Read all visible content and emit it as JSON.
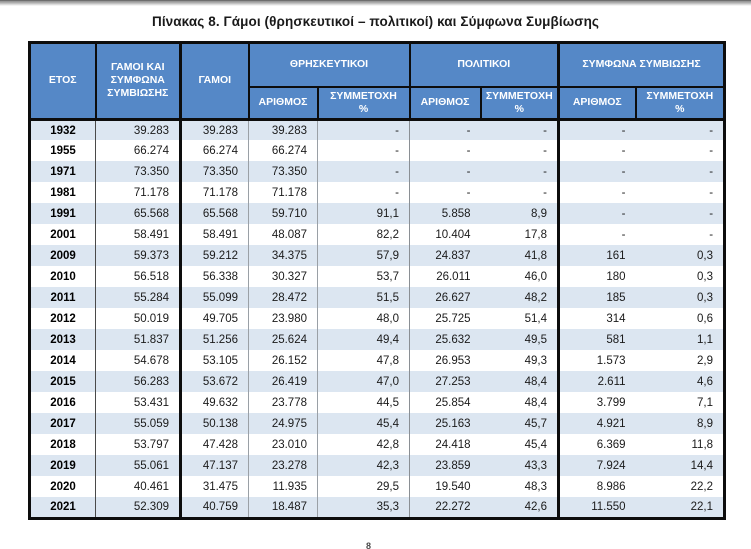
{
  "page": {
    "title": "Πίνακας 8. Γάμοι (θρησκευτικοί – πολιτικοί) και Σύμφωνα Συμβίωσης",
    "page_number": "8"
  },
  "colors": {
    "header_blue": "#5588C7",
    "row_band_blue": "#DCE6F1",
    "border_black": "#0d0d0d",
    "header_text": "#ffffff"
  },
  "table": {
    "header": {
      "year": "ΕΤΟΣ",
      "total": "ΓΑΜΟΙ ΚΑΙ ΣΥΜΦΩΝΑ ΣΥΜΒΙΩΣΗΣ",
      "marriages": "ΓΑΜΟΙ",
      "group_religious": "ΘΡΗΣΚΕΥΤΙΚΟΙ",
      "group_civil": "ΠΟΛΙΤΙΚΟΙ",
      "group_cohabitation": "ΣΥΜΦΩΝΑ ΣΥΜΒΙΩΣΗΣ",
      "number": "ΑΡΙΘΜΟΣ",
      "share": "ΣΥΜΜΕΤΟΧΗ\n%"
    },
    "rows": [
      {
        "year": "1932",
        "total": "39.283",
        "marriages": "39.283",
        "rel_n": "39.283",
        "rel_p": "-",
        "civ_n": "-",
        "civ_p": "-",
        "coh_n": "-",
        "coh_p": "-"
      },
      {
        "year": "1955",
        "total": "66.274",
        "marriages": "66.274",
        "rel_n": "66.274",
        "rel_p": "-",
        "civ_n": "-",
        "civ_p": "-",
        "coh_n": "-",
        "coh_p": "-"
      },
      {
        "year": "1971",
        "total": "73.350",
        "marriages": "73.350",
        "rel_n": "73.350",
        "rel_p": "-",
        "civ_n": "-",
        "civ_p": "-",
        "coh_n": "-",
        "coh_p": "-"
      },
      {
        "year": "1981",
        "total": "71.178",
        "marriages": "71.178",
        "rel_n": "71.178",
        "rel_p": "-",
        "civ_n": "-",
        "civ_p": "-",
        "coh_n": "-",
        "coh_p": "-"
      },
      {
        "year": "1991",
        "total": "65.568",
        "marriages": "65.568",
        "rel_n": "59.710",
        "rel_p": "91,1",
        "civ_n": "5.858",
        "civ_p": "8,9",
        "coh_n": "-",
        "coh_p": "-"
      },
      {
        "year": "2001",
        "total": "58.491",
        "marriages": "58.491",
        "rel_n": "48.087",
        "rel_p": "82,2",
        "civ_n": "10.404",
        "civ_p": "17,8",
        "coh_n": "-",
        "coh_p": "-"
      },
      {
        "year": "2009",
        "total": "59.373",
        "marriages": "59.212",
        "rel_n": "34.375",
        "rel_p": "57,9",
        "civ_n": "24.837",
        "civ_p": "41,8",
        "coh_n": "161",
        "coh_p": "0,3"
      },
      {
        "year": "2010",
        "total": "56.518",
        "marriages": "56.338",
        "rel_n": "30.327",
        "rel_p": "53,7",
        "civ_n": "26.011",
        "civ_p": "46,0",
        "coh_n": "180",
        "coh_p": "0,3"
      },
      {
        "year": "2011",
        "total": "55.284",
        "marriages": "55.099",
        "rel_n": "28.472",
        "rel_p": "51,5",
        "civ_n": "26.627",
        "civ_p": "48,2",
        "coh_n": "185",
        "coh_p": "0,3"
      },
      {
        "year": "2012",
        "total": "50.019",
        "marriages": "49.705",
        "rel_n": "23.980",
        "rel_p": "48,0",
        "civ_n": "25.725",
        "civ_p": "51,4",
        "coh_n": "314",
        "coh_p": "0,6"
      },
      {
        "year": "2013",
        "total": "51.837",
        "marriages": "51.256",
        "rel_n": "25.624",
        "rel_p": "49,4",
        "civ_n": "25.632",
        "civ_p": "49,5",
        "coh_n": "581",
        "coh_p": "1,1"
      },
      {
        "year": "2014",
        "total": "54.678",
        "marriages": "53.105",
        "rel_n": "26.152",
        "rel_p": "47,8",
        "civ_n": "26.953",
        "civ_p": "49,3",
        "coh_n": "1.573",
        "coh_p": "2,9"
      },
      {
        "year": "2015",
        "total": "56.283",
        "marriages": "53.672",
        "rel_n": "26.419",
        "rel_p": "47,0",
        "civ_n": "27.253",
        "civ_p": "48,4",
        "coh_n": "2.611",
        "coh_p": "4,6"
      },
      {
        "year": "2016",
        "total": "53.431",
        "marriages": "49.632",
        "rel_n": "23.778",
        "rel_p": "44,5",
        "civ_n": "25.854",
        "civ_p": "48,4",
        "coh_n": "3.799",
        "coh_p": "7,1"
      },
      {
        "year": "2017",
        "total": "55.059",
        "marriages": "50.138",
        "rel_n": "24.975",
        "rel_p": "45,4",
        "civ_n": "25.163",
        "civ_p": "45,7",
        "coh_n": "4.921",
        "coh_p": "8,9"
      },
      {
        "year": "2018",
        "total": "53.797",
        "marriages": "47.428",
        "rel_n": "23.010",
        "rel_p": "42,8",
        "civ_n": "24.418",
        "civ_p": "45,4",
        "coh_n": "6.369",
        "coh_p": "11,8"
      },
      {
        "year": "2019",
        "total": "55.061",
        "marriages": "47.137",
        "rel_n": "23.278",
        "rel_p": "42,3",
        "civ_n": "23.859",
        "civ_p": "43,3",
        "coh_n": "7.924",
        "coh_p": "14,4"
      },
      {
        "year": "2020",
        "total": "40.461",
        "marriages": "31.475",
        "rel_n": "11.935",
        "rel_p": "29,5",
        "civ_n": "19.540",
        "civ_p": "48,3",
        "coh_n": "8.986",
        "coh_p": "22,2"
      },
      {
        "year": "2021",
        "total": "52.309",
        "marriages": "40.759",
        "rel_n": "18.487",
        "rel_p": "35,3",
        "civ_n": "22.272",
        "civ_p": "42,6",
        "coh_n": "11.550",
        "coh_p": "22,1"
      }
    ]
  }
}
